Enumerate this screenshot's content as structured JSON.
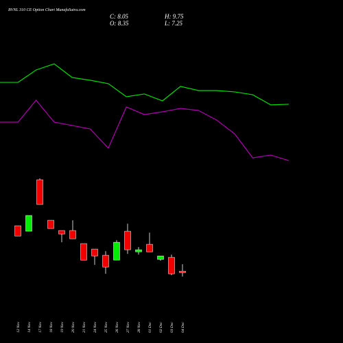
{
  "chart_data": {
    "type": "candlestick",
    "title": "BVNL 310 CE Option Chart MunafaSutra.com",
    "ohlc": [
      {
        "label": "C:",
        "value": 8.05
      },
      {
        "label": "O:",
        "value": 8.35
      },
      {
        "label": "H:",
        "value": 9.75
      },
      {
        "label": "L:",
        "value": 7.25
      }
    ],
    "categories": [
      "12 Nov",
      "14 Nov",
      "17 Nov",
      "18 Nov",
      "19 Nov",
      "20 Nov",
      "21 Nov",
      "24 Nov",
      "25 Nov",
      "26 Nov",
      "27 Nov",
      "28 Nov",
      "01 Dec",
      "02 Dec",
      "03 Dec",
      "04 Dec"
    ],
    "open": [
      17.53,
      16.42,
      26.83,
      18.64,
      16.56,
      16.56,
      13.92,
      12.81,
      11.56,
      10.58,
      16.42,
      12.25,
      13.78,
      10.72,
      11.14,
      8.35
    ],
    "high": [
      17.53,
      19.61,
      27.11,
      18.64,
      16.56,
      18.64,
      13.92,
      12.81,
      12.39,
      14.61,
      17.94,
      13.22,
      16.14,
      11.42,
      11.69,
      9.75
    ],
    "low": [
      15.44,
      16.42,
      21.83,
      16.97,
      14.19,
      14.89,
      10.58,
      9.61,
      7.81,
      10.58,
      11.83,
      11.69,
      12.25,
      10.44,
      7.53,
      7.25
    ],
    "close": [
      15.44,
      19.61,
      21.83,
      16.97,
      15.86,
      14.89,
      10.58,
      11.42,
      9.19,
      14.19,
      12.67,
      12.67,
      12.25,
      11.42,
      7.81,
      8.05
    ],
    "up_color": "#00ee00",
    "down_color": "#ee0000",
    "ylim": [
      6.3,
      28.5
    ],
    "x": [
      0,
      1,
      2,
      3,
      4,
      5,
      6,
      7,
      8,
      9,
      10,
      11,
      12,
      13,
      14,
      15,
      16
    ],
    "xlim": [
      0,
      16
    ],
    "y2lim": [
      0,
      100
    ],
    "series": [
      {
        "color": "#00dd00",
        "axis": "y2",
        "values": [
          68.4,
          68.4,
          77.9,
          82.6,
          72.1,
          70.0,
          67.4,
          57.4,
          59.5,
          54.2,
          65.3,
          62.1,
          62.1,
          61.1,
          58.9,
          51.1,
          51.6
        ]
      },
      {
        "color": "#b000b0",
        "axis": "y2",
        "values": [
          37.9,
          37.9,
          54.7,
          37.9,
          35.3,
          32.6,
          17.9,
          49.5,
          43.7,
          45.8,
          48.4,
          46.8,
          39.5,
          28.9,
          10.5,
          12.6,
          8.4
        ]
      }
    ]
  }
}
